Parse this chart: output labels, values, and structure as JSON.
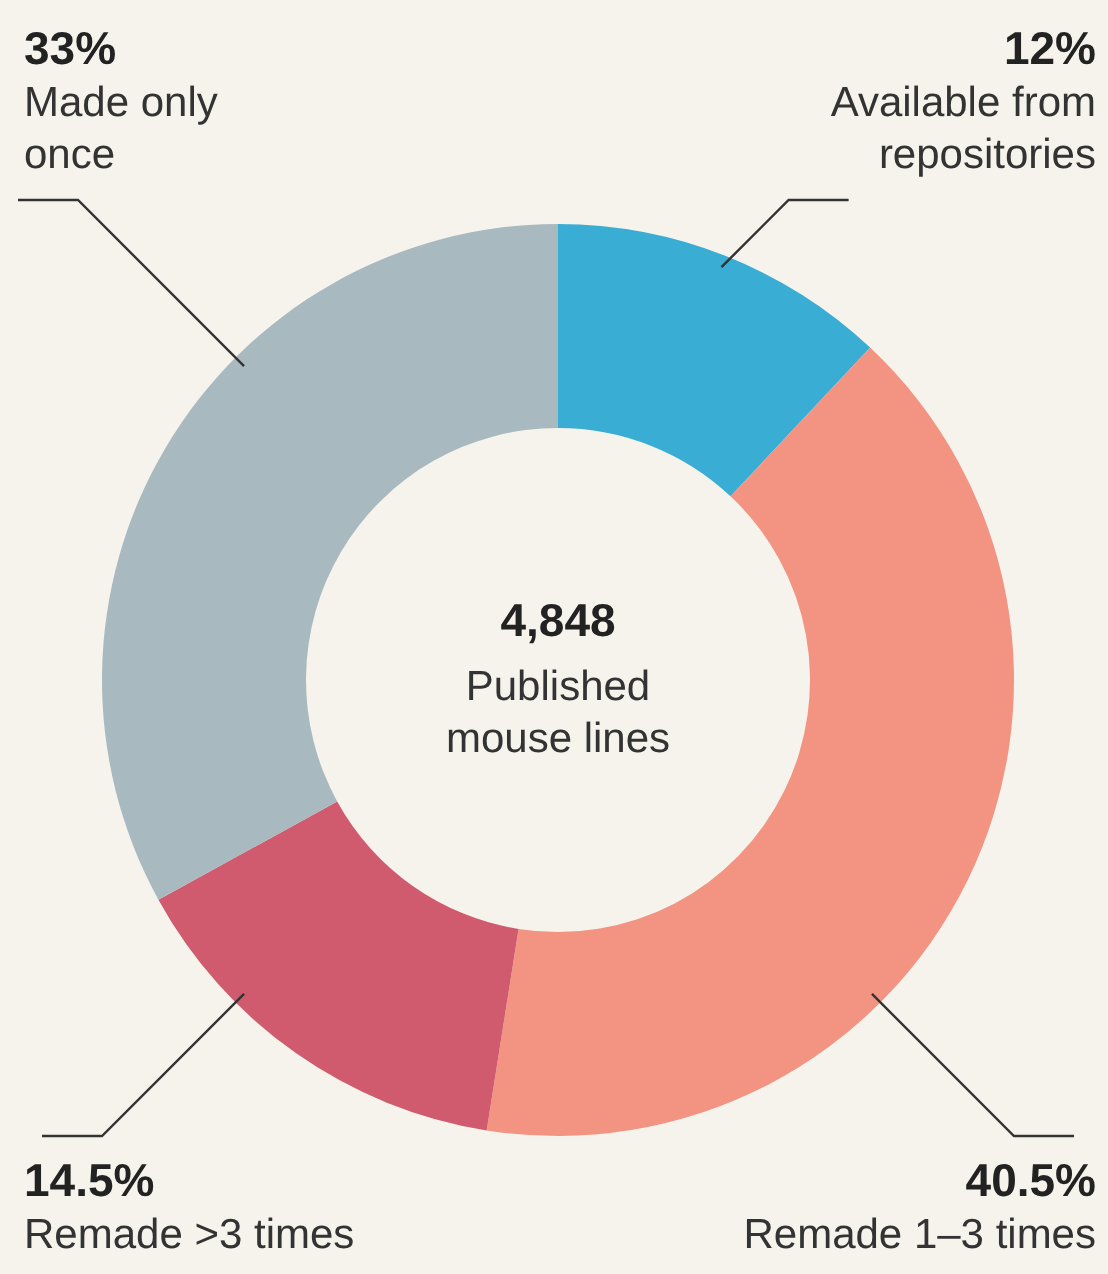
{
  "chart_data": {
    "type": "donut",
    "categories": [
      "Available from repositories",
      "Remade 1–3 times",
      "Remade >3 times",
      "Made only once"
    ],
    "values": [
      12,
      40.5,
      14.5,
      33
    ],
    "colors": [
      "#3aadd5",
      "#f39382",
      "#d05b6f",
      "#a8b9bf"
    ],
    "value_labels": [
      "12%",
      "40.5%",
      "14.5%",
      "33%"
    ],
    "annotations": [
      "4,848",
      "Published mouse lines"
    ]
  }
}
